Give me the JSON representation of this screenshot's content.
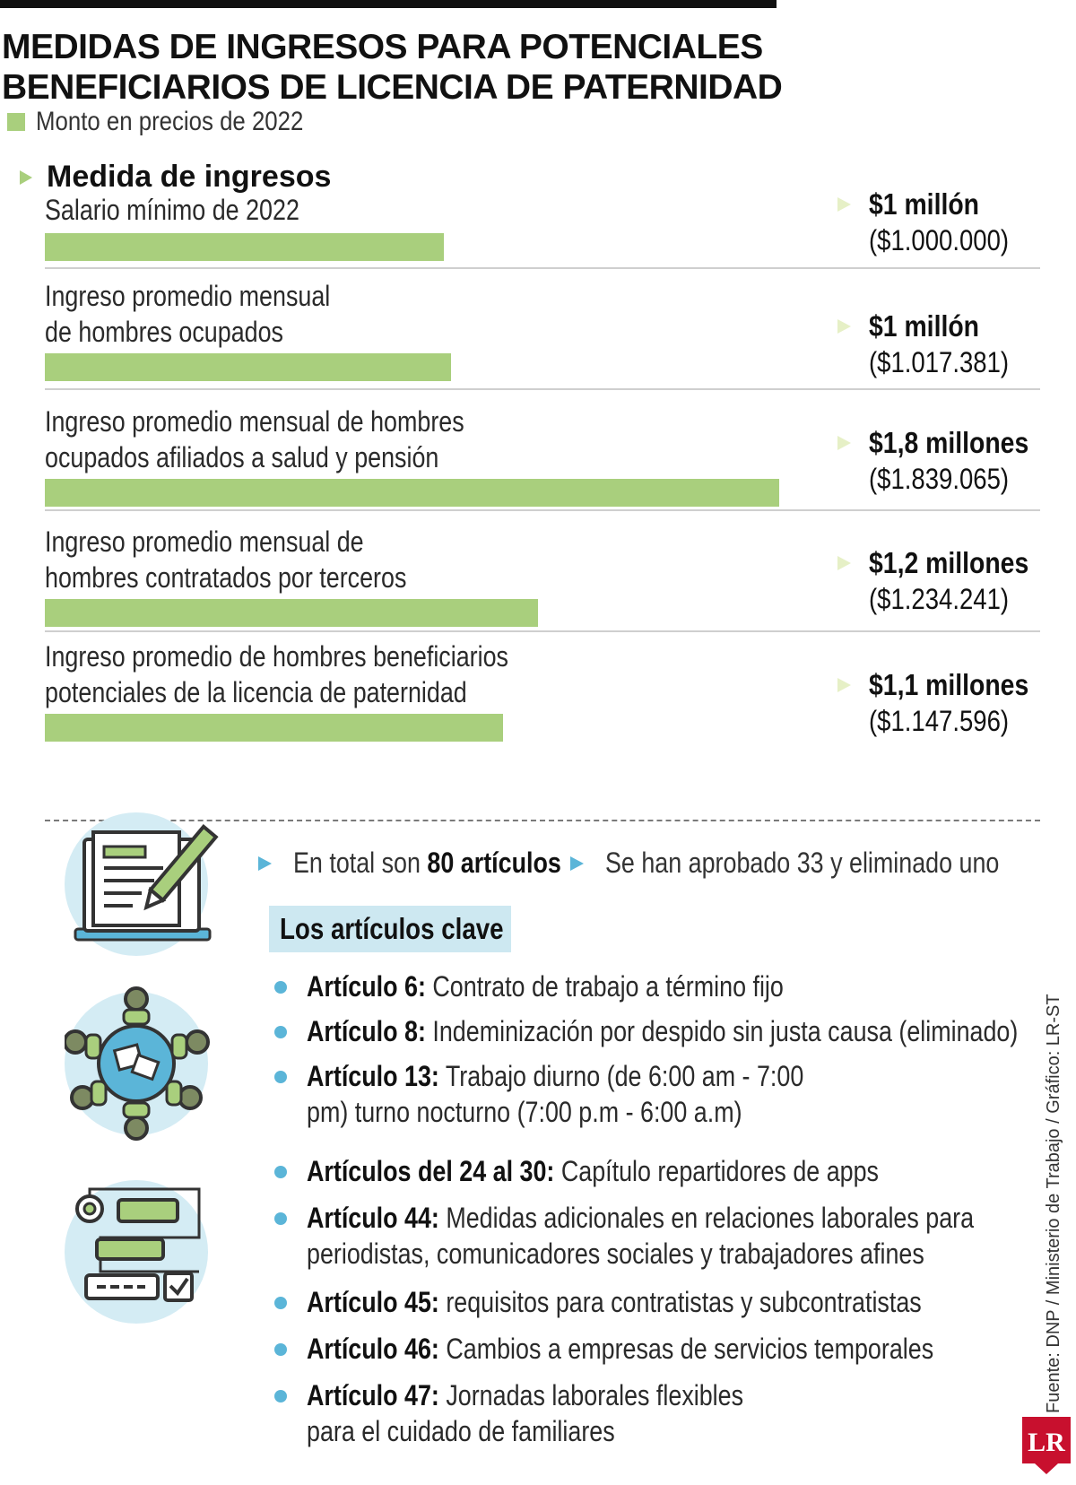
{
  "header": {
    "title_line1": "MEDIDAS DE INGRESOS PARA POTENCIALES",
    "title_line2": "BENEFICIARIOS DE LICENCIA DE PATERNIDAD",
    "legend_label": "Monto en precios de 2022",
    "section_label": "Medida de ingresos"
  },
  "colors": {
    "bar": "#a9cf7d",
    "value_arrow": "#e6f0c6",
    "accent_blue": "#5bb5d8",
    "key_box": "#cde8f1",
    "logo": "#c8102e"
  },
  "chart_data": {
    "type": "bar",
    "orientation": "horizontal",
    "title": "MEDIDAS DE INGRESOS PARA POTENCIALES BENEFICIARIOS DE LICENCIA DE PATERNIDAD",
    "subtitle": "Monto en precios de 2022",
    "unit": "COP",
    "xlim": [
      0,
      1900000
    ],
    "categories": [
      [
        "Salario mínimo de 2022"
      ],
      [
        "Ingreso promedio mensual",
        "de hombres ocupados"
      ],
      [
        "Ingreso promedio mensual de hombres",
        "ocupados afiliados a salud y pensión"
      ],
      [
        "Ingreso promedio mensual de",
        "hombres contratados por terceros"
      ],
      [
        "Ingreso promedio de hombres beneficiarios",
        "potenciales de la licencia de paternidad"
      ]
    ],
    "values": [
      1000000,
      1017381,
      1839065,
      1234241,
      1147596
    ],
    "value_labels": [
      "$1 millón",
      "$1 millón",
      "$1,8 millones",
      "$1,2 millones",
      "$1,1 millones"
    ],
    "exact_labels": [
      "($1.000.000)",
      "($1.017.381)",
      "($1.839.065)",
      "($1.234.241)",
      "($1.147.596)"
    ]
  },
  "facts": [
    {
      "text": "En total son ",
      "bold": "80 artículos"
    },
    {
      "text": "Se han aprobado 33 y eliminado uno",
      "bold": ""
    }
  ],
  "key_articles_label": "Los artículos clave",
  "articles": [
    {
      "bold": "Artículo 6:",
      "lines": [
        "Contrato de trabajo a término fijo"
      ]
    },
    {
      "bold": "Artículo 8:",
      "lines": [
        "Indeminización por despido sin justa causa (eliminado)"
      ]
    },
    {
      "bold": "Artículo 13:",
      "lines": [
        "Trabajo diurno (de 6:00 am - 7:00",
        "pm) turno nocturno (7:00 p.m - 6:00 a.m)"
      ]
    },
    {
      "bold": "Artículos del 24 al 30:",
      "lines": [
        "Capítulo repartidores de apps"
      ]
    },
    {
      "bold": "Artículo 44:",
      "lines": [
        "Medidas adicionales en relaciones laborales para",
        "periodistas, comunicadores sociales y trabajadores afines"
      ]
    },
    {
      "bold": "Artículo 45:",
      "lines": [
        "requisitos para contratistas y subcontratistas"
      ]
    },
    {
      "bold": "Artículo 46:",
      "lines": [
        "Cambios a empresas de servicios temporales"
      ]
    },
    {
      "bold": "Artículo 47:",
      "lines": [
        "Jornadas laborales flexibles",
        "para el cuidado de familiares"
      ]
    }
  ],
  "source": "Fuente: DNP / Ministerio de Trabajo / Gráfico: LR-ST",
  "logo_text": "LR"
}
